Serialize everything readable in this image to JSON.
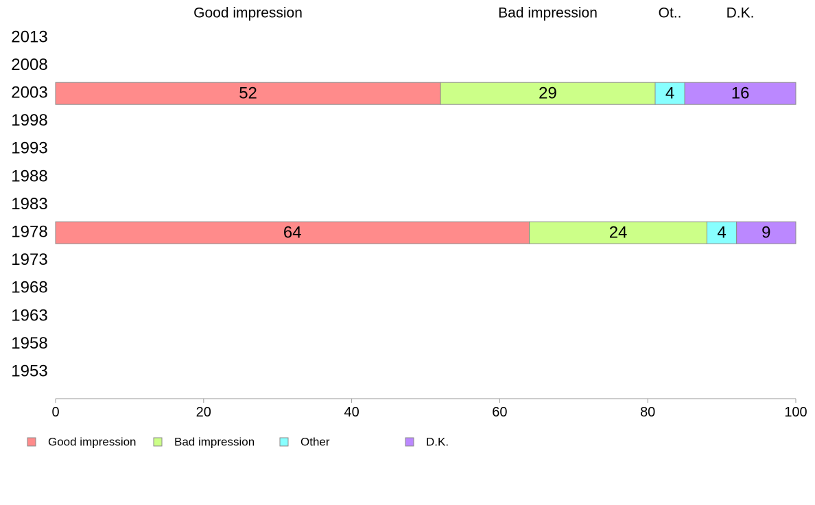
{
  "chart_data": {
    "type": "bar",
    "orientation": "horizontal",
    "stacked": true,
    "categories": [
      "2013",
      "2008",
      "2003",
      "1998",
      "1993",
      "1988",
      "1983",
      "1978",
      "1973",
      "1968",
      "1963",
      "1958",
      "1953"
    ],
    "series": [
      {
        "name": "Good impression",
        "header": "Good impression",
        "color": "#ff8b8b",
        "values": [
          null,
          null,
          52,
          null,
          null,
          null,
          null,
          64,
          null,
          null,
          null,
          null,
          null
        ]
      },
      {
        "name": "Bad impression",
        "header": "Bad impression",
        "color": "#ccff88",
        "values": [
          null,
          null,
          29,
          null,
          null,
          null,
          null,
          24,
          null,
          null,
          null,
          null,
          null
        ]
      },
      {
        "name": "Other",
        "header": "Ot..",
        "color": "#88ffff",
        "values": [
          null,
          null,
          4,
          null,
          null,
          null,
          null,
          4,
          null,
          null,
          null,
          null,
          null
        ]
      },
      {
        "name": "D.K.",
        "header": "D.K.",
        "color": "#bb88ff",
        "values": [
          null,
          null,
          16,
          null,
          null,
          null,
          null,
          9,
          null,
          null,
          null,
          null,
          null
        ]
      }
    ],
    "xlim": [
      0,
      100
    ],
    "xticks": [
      0,
      20,
      40,
      60,
      80,
      100
    ],
    "grid": false,
    "legend_position": "bottom-left"
  }
}
